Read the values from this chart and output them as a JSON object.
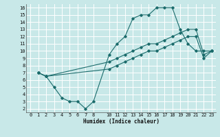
{
  "bg_color": "#c8e8e8",
  "grid_color": "#b0d8d8",
  "line_color": "#1a6b6b",
  "xlabel": "Humidex (Indice chaleur)",
  "xlim": [
    -0.5,
    23.5
  ],
  "ylim": [
    1.5,
    16.5
  ],
  "xticks": [
    0,
    1,
    2,
    3,
    4,
    5,
    6,
    7,
    8,
    10,
    11,
    12,
    13,
    14,
    15,
    16,
    17,
    18,
    19,
    20,
    21,
    22,
    23
  ],
  "yticks": [
    2,
    3,
    4,
    5,
    6,
    7,
    8,
    9,
    10,
    11,
    12,
    13,
    14,
    15,
    16
  ],
  "curve1_x": [
    1,
    2,
    3,
    4,
    5,
    6,
    7,
    8,
    10,
    11,
    12,
    13,
    14,
    15,
    16,
    17,
    18,
    19,
    20,
    21,
    22,
    23
  ],
  "curve1_y": [
    7,
    6.5,
    5,
    3.5,
    3,
    3,
    2,
    3,
    9.5,
    11,
    12,
    14.5,
    15,
    15,
    16,
    16,
    16,
    13,
    11,
    10,
    10,
    10
  ],
  "curve2_x": [
    1,
    2,
    10,
    11,
    12,
    13,
    14,
    15,
    16,
    17,
    18,
    19,
    20,
    21,
    22,
    23
  ],
  "curve2_y": [
    7,
    6.5,
    8.5,
    9,
    9.5,
    10,
    10.5,
    11,
    11,
    11.5,
    12,
    12.5,
    13,
    13,
    9.5,
    10
  ],
  "curve3_x": [
    1,
    2,
    10,
    11,
    12,
    13,
    14,
    15,
    16,
    17,
    18,
    19,
    20,
    21,
    22,
    23
  ],
  "curve3_y": [
    7,
    6.5,
    7.5,
    8,
    8.5,
    9,
    9.5,
    10,
    10,
    10.5,
    11,
    11.5,
    12,
    12,
    9,
    10
  ]
}
